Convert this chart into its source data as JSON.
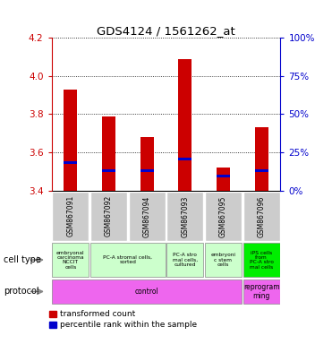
{
  "title": "GDS4124 / 1561262_at",
  "samples": [
    "GSM867091",
    "GSM867092",
    "GSM867094",
    "GSM867093",
    "GSM867095",
    "GSM867096"
  ],
  "transformed_counts": [
    3.93,
    3.79,
    3.68,
    4.09,
    3.52,
    3.73
  ],
  "bar_bottom": 3.4,
  "percentile_y": [
    3.545,
    3.505,
    3.505,
    3.565,
    3.475,
    3.505
  ],
  "ylim": [
    3.4,
    4.2
  ],
  "yticks_left": [
    3.4,
    3.6,
    3.8,
    4.0,
    4.2
  ],
  "yticks_right": [
    0,
    25,
    50,
    75,
    100
  ],
  "cell_types": [
    {
      "label": "embryonal\ncarcinoma\nNCCIT\ncells",
      "start": 0,
      "end": 1,
      "color": "#ccffcc"
    },
    {
      "label": "PC-A stromal cells,\nsorted",
      "start": 1,
      "end": 3,
      "color": "#ccffcc"
    },
    {
      "label": "PC-A stro\nmal cells,\ncultured",
      "start": 3,
      "end": 4,
      "color": "#ccffcc"
    },
    {
      "label": "embryoni\nc stem\ncells",
      "start": 4,
      "end": 5,
      "color": "#ccffcc"
    },
    {
      "label": "iPS cells\nfrom\nPC-A stro\nmal cells",
      "start": 5,
      "end": 6,
      "color": "#00ee00"
    }
  ],
  "protocols": [
    {
      "label": "control",
      "start": 0,
      "end": 5,
      "color": "#ee66ee"
    },
    {
      "label": "reprogram\nming",
      "start": 5,
      "end": 6,
      "color": "#ee66ee"
    }
  ],
  "bar_color": "#cc0000",
  "percentile_color": "#0000cc",
  "axis_left_color": "#cc0000",
  "axis_right_color": "#0000cc",
  "background_color": "#ffffff",
  "grid_color": "#000000",
  "sample_bg": "#cccccc",
  "bar_width": 0.35
}
